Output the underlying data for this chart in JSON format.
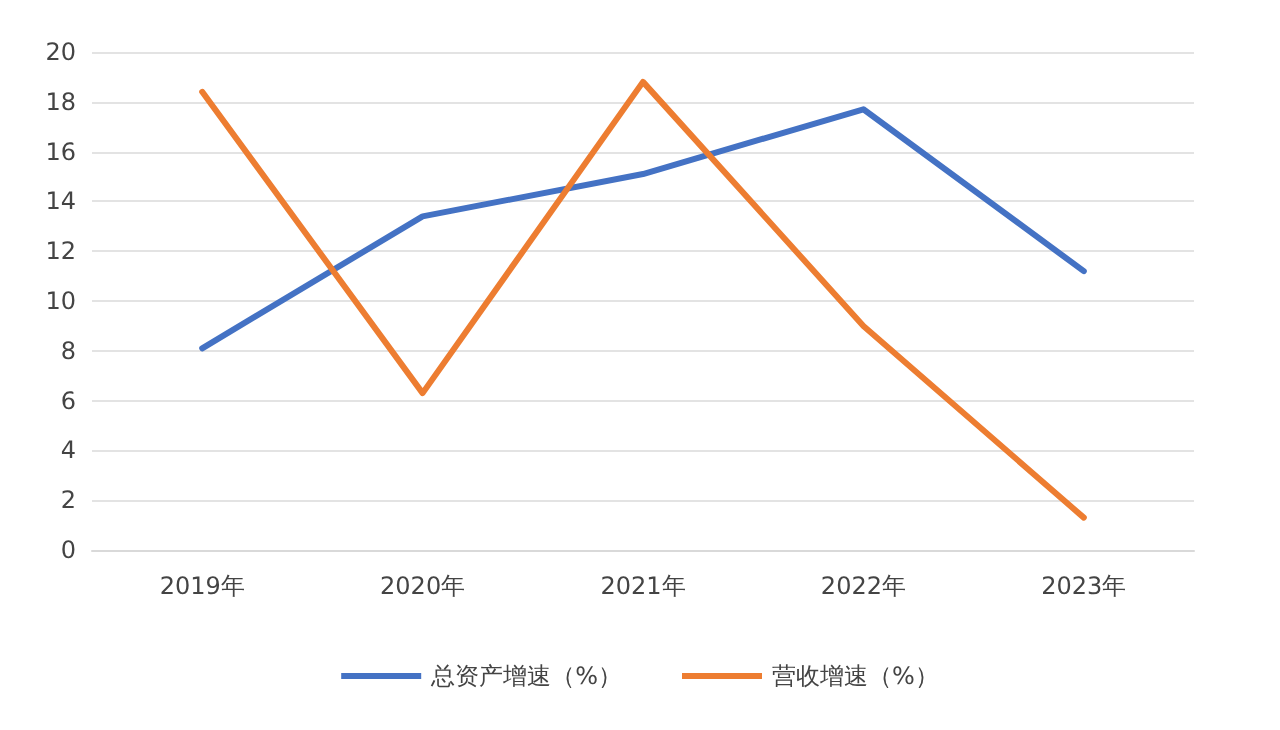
{
  "chart_data": {
    "type": "line",
    "categories": [
      "2019年",
      "2020年",
      "2021年",
      "2022年",
      "2023年"
    ],
    "series": [
      {
        "name": "总资产增速（%）",
        "color": "#4472c4",
        "values": [
          8.1,
          13.4,
          15.1,
          17.7,
          11.2
        ]
      },
      {
        "name": "营收增速（%）",
        "color": "#ed7d31",
        "values": [
          18.4,
          6.3,
          18.8,
          9.0,
          1.3
        ]
      }
    ],
    "ylim": [
      0,
      20
    ],
    "yticks": [
      0,
      2,
      4,
      6,
      8,
      10,
      12,
      14,
      16,
      18,
      20
    ],
    "grid": "y",
    "legend": "bottom",
    "marker": "none",
    "line_style": "solid"
  }
}
